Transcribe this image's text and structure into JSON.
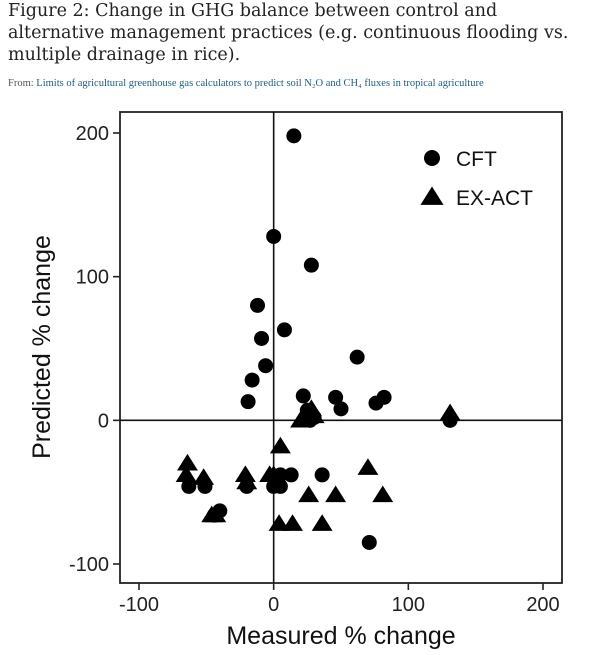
{
  "figure": {
    "title": "Figure 2: Change in GHG balance between control and alternative management practices (e.g. continuous flooding vs. multiple drainage in rice).",
    "source_prefix": "From: ",
    "source_link": "Limits of agricultural greenhouse gas calculators to predict soil N₂O and CH₄ fluxes in tropical agriculture"
  },
  "chart_data": {
    "type": "scatter",
    "title": "",
    "xlabel": "Measured % change",
    "ylabel": "Predicted % change",
    "xlim": [
      -100,
      200
    ],
    "ylim": [
      -100,
      200
    ],
    "x_ticks": [
      -100,
      0,
      100,
      200
    ],
    "y_ticks": [
      -100,
      0,
      100,
      200
    ],
    "x_tick_labels": [
      "-100",
      "0",
      "100",
      "200"
    ],
    "y_tick_labels": [
      "-100",
      "0",
      "100",
      "200"
    ],
    "reference_lines": {
      "x": 0,
      "y": 0
    },
    "legend_position": "top-right",
    "series": [
      {
        "name": "CFT",
        "marker": "circle",
        "color": "#000000",
        "points": [
          [
            15,
            198
          ],
          [
            0,
            128
          ],
          [
            28,
            108
          ],
          [
            -12,
            80
          ],
          [
            8,
            63
          ],
          [
            -9,
            57
          ],
          [
            -6,
            38
          ],
          [
            -16,
            28
          ],
          [
            62,
            44
          ],
          [
            -19,
            13
          ],
          [
            22,
            17
          ],
          [
            46,
            16
          ],
          [
            25,
            7
          ],
          [
            50,
            8
          ],
          [
            76,
            12
          ],
          [
            82,
            16
          ],
          [
            30,
            2
          ],
          [
            27,
            0
          ],
          [
            131,
            0
          ],
          [
            -63,
            -46
          ],
          [
            -51,
            -46
          ],
          [
            -44,
            -66
          ],
          [
            -40,
            -63
          ],
          [
            -20,
            -46
          ],
          [
            0,
            -46
          ],
          [
            5,
            -46
          ],
          [
            5,
            -38
          ],
          [
            13,
            -38
          ],
          [
            36,
            -38
          ],
          [
            71,
            -85
          ]
        ]
      },
      {
        "name": "EX-ACT",
        "marker": "triangle",
        "color": "#000000",
        "points": [
          [
            131,
            5
          ],
          [
            20,
            0
          ],
          [
            25,
            3
          ],
          [
            28,
            8
          ],
          [
            30,
            3
          ],
          [
            -64,
            -30
          ],
          [
            -65,
            -38
          ],
          [
            -52,
            -40
          ],
          [
            -21,
            -38
          ],
          [
            -20,
            -43
          ],
          [
            -3,
            -38
          ],
          [
            0,
            -38
          ],
          [
            5,
            -18
          ],
          [
            26,
            -52
          ],
          [
            46,
            -52
          ],
          [
            70,
            -33
          ],
          [
            81,
            -52
          ],
          [
            4,
            -72
          ],
          [
            14,
            -72
          ],
          [
            36,
            -72
          ],
          [
            -46,
            -66
          ],
          [
            -43,
            -66
          ]
        ]
      }
    ]
  }
}
